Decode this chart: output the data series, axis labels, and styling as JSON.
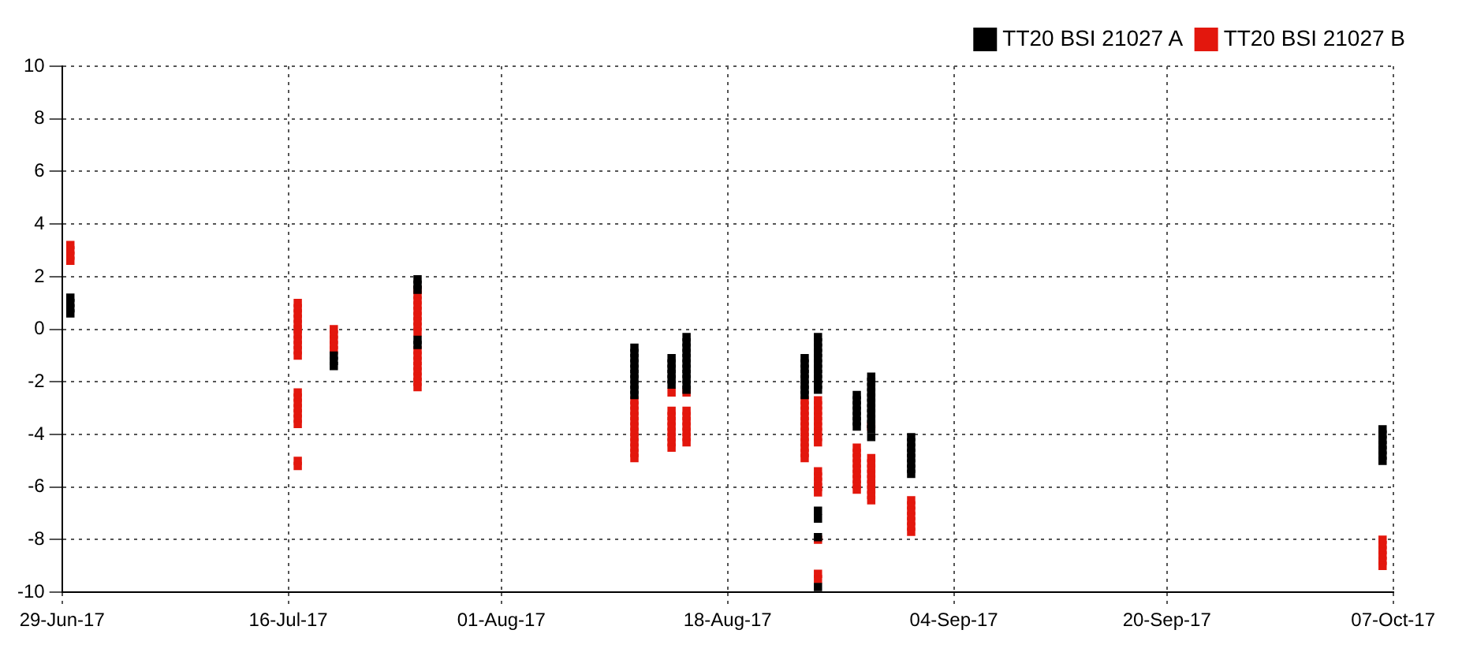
{
  "chart_data": {
    "type": "scatter",
    "marker": "square",
    "grid": true,
    "legend": "top right",
    "xlim": [
      "2017-06-29",
      "2017-10-07"
    ],
    "xticks": [
      {
        "value": "2017-06-29",
        "label": "29-Jun-17"
      },
      {
        "value": "2017-07-16",
        "label": "16-Jul-17"
      },
      {
        "value": "2017-08-01",
        "label": "01-Aug-17"
      },
      {
        "value": "2017-08-18",
        "label": "18-Aug-17"
      },
      {
        "value": "2017-09-04",
        "label": "04-Sep-17"
      },
      {
        "value": "2017-09-20",
        "label": "20-Sep-17"
      },
      {
        "value": "2017-10-07",
        "label": "07-Oct-17"
      }
    ],
    "ylim": [
      -10,
      10
    ],
    "yticks": [
      -10,
      -8,
      -6,
      -4,
      -2,
      0,
      2,
      4,
      6,
      8,
      10
    ],
    "series": [
      {
        "name": "TT20 BSI 21027 A",
        "color": "#000000",
        "x": [
          "2017-06-29T15:00",
          "2017-06-29T15:00",
          "2017-06-29T15:00",
          "2017-06-29T15:00",
          "2017-07-19T10:00",
          "2017-07-19T10:00",
          "2017-07-19T10:00",
          "2017-07-25T17:00",
          "2017-07-25T17:00",
          "2017-07-25T17:00",
          "2017-07-25T17:00",
          "2017-07-25T17:00",
          "2017-08-11T00:00",
          "2017-08-11T00:00",
          "2017-08-11T00:00",
          "2017-08-11T00:00",
          "2017-08-11T00:00",
          "2017-08-11T00:00",
          "2017-08-11T00:00",
          "2017-08-11T00:00",
          "2017-08-11T00:00",
          "2017-08-11T00:00",
          "2017-08-13T19:00",
          "2017-08-13T19:00",
          "2017-08-13T19:00",
          "2017-08-13T19:00",
          "2017-08-13T19:00",
          "2017-08-13T19:00",
          "2017-08-14T22:00",
          "2017-08-14T22:00",
          "2017-08-14T22:00",
          "2017-08-14T22:00",
          "2017-08-14T22:00",
          "2017-08-14T22:00",
          "2017-08-14T22:00",
          "2017-08-14T22:00",
          "2017-08-14T22:00",
          "2017-08-14T22:00",
          "2017-08-14T22:00",
          "2017-08-23T19:00",
          "2017-08-23T19:00",
          "2017-08-23T19:00",
          "2017-08-23T19:00",
          "2017-08-23T19:00",
          "2017-08-23T19:00",
          "2017-08-23T19:00",
          "2017-08-23T19:00",
          "2017-08-24T19:00",
          "2017-08-24T19:00",
          "2017-08-24T19:00",
          "2017-08-24T19:00",
          "2017-08-24T19:00",
          "2017-08-24T19:00",
          "2017-08-24T19:00",
          "2017-08-24T19:00",
          "2017-08-24T19:00",
          "2017-08-24T19:00",
          "2017-08-24T19:00",
          "2017-08-24T19:00",
          "2017-08-24T19:00",
          "2017-08-24T19:00",
          "2017-08-24T19:00",
          "2017-08-27T17:00",
          "2017-08-27T17:00",
          "2017-08-27T17:00",
          "2017-08-27T17:00",
          "2017-08-27T17:00",
          "2017-08-27T17:00",
          "2017-08-27T17:00",
          "2017-08-28T19:00",
          "2017-08-28T19:00",
          "2017-08-28T19:00",
          "2017-08-28T19:00",
          "2017-08-28T19:00",
          "2017-08-28T19:00",
          "2017-08-28T19:00",
          "2017-08-28T19:00",
          "2017-08-28T19:00",
          "2017-08-28T19:00",
          "2017-08-28T19:00",
          "2017-08-28T19:00",
          "2017-08-31T19:00",
          "2017-08-31T19:00",
          "2017-08-31T19:00",
          "2017-08-31T19:00",
          "2017-08-31T19:00",
          "2017-08-31T19:00",
          "2017-08-31T19:00",
          "2017-08-31T19:00",
          "2017-10-06T05:00",
          "2017-10-06T05:00",
          "2017-10-06T05:00",
          "2017-10-06T05:00",
          "2017-10-06T05:00",
          "2017-10-06T05:00",
          "2017-10-06T05:00"
        ],
        "values": [
          0.6,
          0.8,
          1.0,
          1.2,
          -1.0,
          -1.2,
          -1.4,
          1.9,
          1.7,
          1.5,
          -0.4,
          -0.6,
          -0.7,
          -0.9,
          -1.1,
          -1.3,
          -1.5,
          -1.7,
          -1.9,
          -2.1,
          -2.3,
          -2.5,
          -1.1,
          -1.3,
          -1.5,
          -1.7,
          -1.9,
          -2.1,
          -0.3,
          -0.5,
          -0.7,
          -0.9,
          -1.1,
          -1.3,
          -1.5,
          -1.7,
          -1.9,
          -2.1,
          -2.3,
          -1.1,
          -1.3,
          -1.5,
          -1.7,
          -1.9,
          -2.1,
          -2.3,
          -2.5,
          -0.3,
          -0.5,
          -0.7,
          -0.9,
          -1.1,
          -1.3,
          -1.5,
          -1.7,
          -1.9,
          -2.1,
          -2.3,
          -6.9,
          -7.2,
          -7.9,
          -9.8,
          -2.5,
          -2.7,
          -2.9,
          -3.1,
          -3.3,
          -3.5,
          -3.7,
          -1.8,
          -2.0,
          -2.2,
          -2.4,
          -2.6,
          -2.8,
          -3.0,
          -3.2,
          -3.4,
          -3.6,
          -3.8,
          -4.1,
          -4.1,
          -4.3,
          -4.5,
          -4.7,
          -4.9,
          -5.1,
          -5.3,
          -5.5,
          -3.8,
          -4.0,
          -4.2,
          -4.4,
          -4.6,
          -4.8,
          -5.0
        ]
      },
      {
        "name": "TT20 BSI 21027 B",
        "color": "#e3170d",
        "x": [
          "2017-06-29T15:00",
          "2017-06-29T15:00",
          "2017-06-29T15:00",
          "2017-06-29T15:00",
          "2017-07-16T17:00",
          "2017-07-16T17:00",
          "2017-07-16T17:00",
          "2017-07-16T17:00",
          "2017-07-16T17:00",
          "2017-07-16T17:00",
          "2017-07-16T17:00",
          "2017-07-16T17:00",
          "2017-07-16T17:00",
          "2017-07-16T17:00",
          "2017-07-16T17:00",
          "2017-07-16T17:00",
          "2017-07-16T17:00",
          "2017-07-16T17:00",
          "2017-07-16T17:00",
          "2017-07-16T17:00",
          "2017-07-16T17:00",
          "2017-07-16T17:00",
          "2017-07-16T17:00",
          "2017-07-16T17:00",
          "2017-07-19T10:00",
          "2017-07-19T10:00",
          "2017-07-19T10:00",
          "2017-07-19T10:00",
          "2017-07-19T10:00",
          "2017-07-25T17:00",
          "2017-07-25T17:00",
          "2017-07-25T17:00",
          "2017-07-25T17:00",
          "2017-07-25T17:00",
          "2017-07-25T17:00",
          "2017-07-25T17:00",
          "2017-07-25T17:00",
          "2017-07-25T17:00",
          "2017-07-25T17:00",
          "2017-07-25T17:00",
          "2017-07-25T17:00",
          "2017-07-25T17:00",
          "2017-07-25T17:00",
          "2017-07-25T17:00",
          "2017-07-25T17:00",
          "2017-07-25T17:00",
          "2017-08-11T00:00",
          "2017-08-11T00:00",
          "2017-08-11T00:00",
          "2017-08-11T00:00",
          "2017-08-11T00:00",
          "2017-08-11T00:00",
          "2017-08-11T00:00",
          "2017-08-11T00:00",
          "2017-08-11T00:00",
          "2017-08-11T00:00",
          "2017-08-11T00:00",
          "2017-08-11T00:00",
          "2017-08-13T19:00",
          "2017-08-13T19:00",
          "2017-08-13T19:00",
          "2017-08-13T19:00",
          "2017-08-13T19:00",
          "2017-08-13T19:00",
          "2017-08-13T19:00",
          "2017-08-13T19:00",
          "2017-08-13T19:00",
          "2017-08-14T22:00",
          "2017-08-14T22:00",
          "2017-08-14T22:00",
          "2017-08-14T22:00",
          "2017-08-14T22:00",
          "2017-08-14T22:00",
          "2017-08-14T22:00",
          "2017-08-14T22:00",
          "2017-08-23T19:00",
          "2017-08-23T19:00",
          "2017-08-23T19:00",
          "2017-08-23T19:00",
          "2017-08-23T19:00",
          "2017-08-23T19:00",
          "2017-08-23T19:00",
          "2017-08-23T19:00",
          "2017-08-23T19:00",
          "2017-08-23T19:00",
          "2017-08-23T19:00",
          "2017-08-23T19:00",
          "2017-08-24T19:00",
          "2017-08-24T19:00",
          "2017-08-24T19:00",
          "2017-08-24T19:00",
          "2017-08-24T19:00",
          "2017-08-24T19:00",
          "2017-08-24T19:00",
          "2017-08-24T19:00",
          "2017-08-24T19:00",
          "2017-08-24T19:00",
          "2017-08-24T19:00",
          "2017-08-24T19:00",
          "2017-08-24T19:00",
          "2017-08-24T19:00",
          "2017-08-24T19:00",
          "2017-08-24T19:00",
          "2017-08-24T19:00",
          "2017-08-27T17:00",
          "2017-08-27T17:00",
          "2017-08-27T17:00",
          "2017-08-27T17:00",
          "2017-08-27T17:00",
          "2017-08-27T17:00",
          "2017-08-27T17:00",
          "2017-08-27T17:00",
          "2017-08-27T17:00",
          "2017-08-28T19:00",
          "2017-08-28T19:00",
          "2017-08-28T19:00",
          "2017-08-28T19:00",
          "2017-08-28T19:00",
          "2017-08-28T19:00",
          "2017-08-28T19:00",
          "2017-08-28T19:00",
          "2017-08-28T19:00",
          "2017-08-28T19:00",
          "2017-08-31T19:00",
          "2017-08-31T19:00",
          "2017-08-31T19:00",
          "2017-08-31T19:00",
          "2017-08-31T19:00",
          "2017-08-31T19:00",
          "2017-08-31T19:00",
          "2017-10-06T05:00",
          "2017-10-06T05:00",
          "2017-10-06T05:00",
          "2017-10-06T05:00",
          "2017-10-06T05:00",
          "2017-10-06T05:00"
        ],
        "values": [
          2.6,
          2.8,
          3.0,
          3.2,
          1.0,
          0.8,
          0.6,
          0.4,
          0.2,
          0.0,
          -0.2,
          -0.4,
          -0.6,
          -0.8,
          -1.0,
          -2.4,
          -2.6,
          -2.8,
          -3.0,
          -3.2,
          -3.4,
          -3.6,
          -5.0,
          -5.2,
          0.0,
          -0.2,
          -0.4,
          -0.6,
          -0.8,
          1.5,
          1.3,
          1.1,
          0.9,
          0.7,
          0.5,
          0.3,
          0.1,
          -0.1,
          -0.8,
          -1.0,
          -1.2,
          -1.4,
          -1.6,
          -1.8,
          -2.0,
          -2.2,
          -2.7,
          -2.9,
          -3.1,
          -3.3,
          -3.5,
          -3.7,
          -3.9,
          -4.1,
          -4.3,
          -4.5,
          -4.7,
          -4.9,
          -2.4,
          -3.1,
          -3.3,
          -3.5,
          -3.7,
          -3.9,
          -4.1,
          -4.3,
          -4.5,
          -2.4,
          -3.1,
          -3.3,
          -3.5,
          -3.7,
          -3.9,
          -4.1,
          -4.3,
          -2.7,
          -2.9,
          -3.1,
          -3.3,
          -3.5,
          -3.7,
          -3.9,
          -4.1,
          -4.3,
          -4.5,
          -4.7,
          -4.9,
          -2.7,
          -2.9,
          -3.1,
          -3.3,
          -3.5,
          -3.7,
          -3.9,
          -4.1,
          -4.3,
          -5.4,
          -5.6,
          -5.8,
          -6.0,
          -6.2,
          -8.0,
          -9.3,
          -9.5,
          -4.5,
          -4.7,
          -4.9,
          -5.1,
          -5.3,
          -5.5,
          -5.7,
          -5.9,
          -6.1,
          -3.7,
          -4.9,
          -5.1,
          -5.3,
          -5.5,
          -5.7,
          -5.9,
          -6.1,
          -6.3,
          -6.5,
          -6.5,
          -6.7,
          -6.9,
          -7.1,
          -7.3,
          -7.5,
          -7.7,
          -8.0,
          -8.2,
          -8.4,
          -8.6,
          -8.8,
          -9.0
        ]
      }
    ]
  }
}
